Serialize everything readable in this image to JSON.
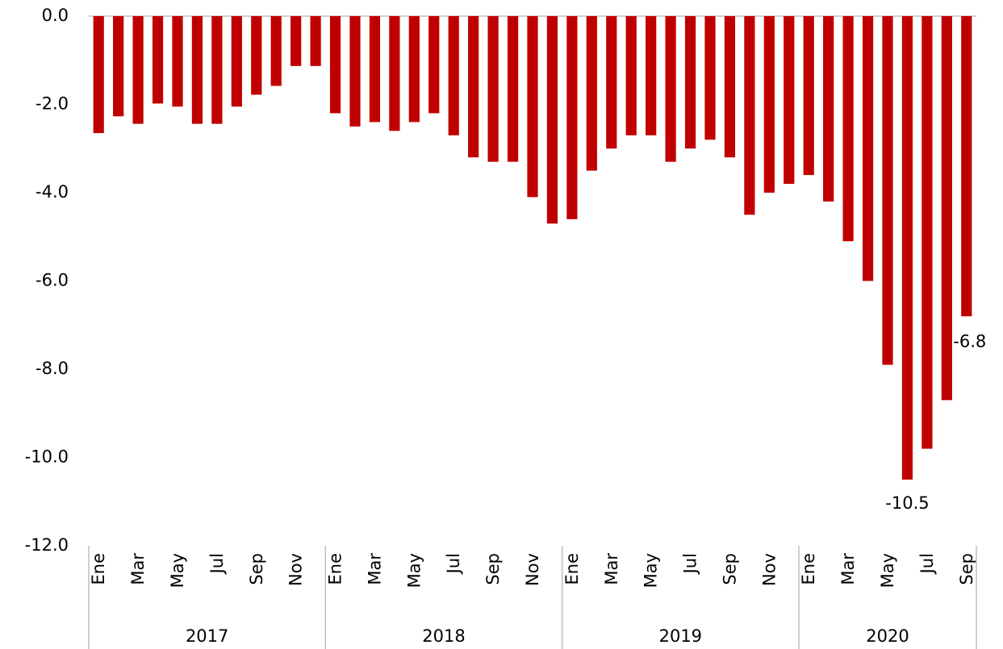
{
  "chart_data": {
    "type": "bar",
    "categories": [
      "Ene",
      null,
      "Mar",
      null,
      "May",
      null,
      "Jul",
      null,
      "Sep",
      null,
      "Nov",
      null,
      "Ene",
      null,
      "Mar",
      null,
      "May",
      null,
      "Jul",
      null,
      "Sep",
      null,
      "Nov",
      null,
      "Ene",
      null,
      "Mar",
      null,
      "May",
      null,
      "Jul",
      null,
      "Sep",
      null,
      "Nov",
      null,
      "Ene",
      null,
      "Mar",
      null,
      "May",
      null,
      "Jul",
      null,
      "Sep"
    ],
    "groups": [
      "2017",
      "2018",
      "2019",
      "2020"
    ],
    "values": [
      -2.65,
      -2.27,
      -2.44,
      -1.98,
      -2.05,
      -2.44,
      -2.44,
      -2.05,
      -1.78,
      -1.58,
      -1.13,
      -1.13,
      -2.2,
      -2.5,
      -2.4,
      -2.6,
      -2.4,
      -2.2,
      -2.7,
      -3.2,
      -3.3,
      -3.3,
      -4.1,
      -4.7,
      -4.6,
      -3.5,
      -3.0,
      -2.7,
      -2.7,
      -3.3,
      -3.0,
      -2.8,
      -3.2,
      -4.5,
      -4.0,
      -3.8,
      -3.6,
      -4.2,
      -5.1,
      -6.0,
      -7.9,
      -10.5,
      -9.8,
      -8.7,
      -6.8
    ],
    "value_labels": [
      null,
      null,
      null,
      null,
      null,
      null,
      null,
      null,
      null,
      null,
      null,
      null,
      null,
      null,
      null,
      null,
      null,
      null,
      null,
      null,
      null,
      null,
      null,
      null,
      null,
      null,
      null,
      null,
      null,
      null,
      null,
      null,
      null,
      null,
      null,
      null,
      null,
      null,
      null,
      null,
      null,
      "-10.5",
      null,
      null,
      "-6.8"
    ],
    "color": "#c00000",
    "ylim": [
      -12,
      0
    ],
    "yticks": [
      {
        "value": 0,
        "label": "0.0"
      },
      {
        "value": -2,
        "label": "-2.0"
      },
      {
        "value": -4,
        "label": "-4.0"
      },
      {
        "value": -6,
        "label": "-6.0"
      },
      {
        "value": -8,
        "label": "-8.0"
      },
      {
        "value": -10,
        "label": "-10.0"
      },
      {
        "value": -12,
        "label": "-12.0"
      }
    ],
    "grid": false
  }
}
